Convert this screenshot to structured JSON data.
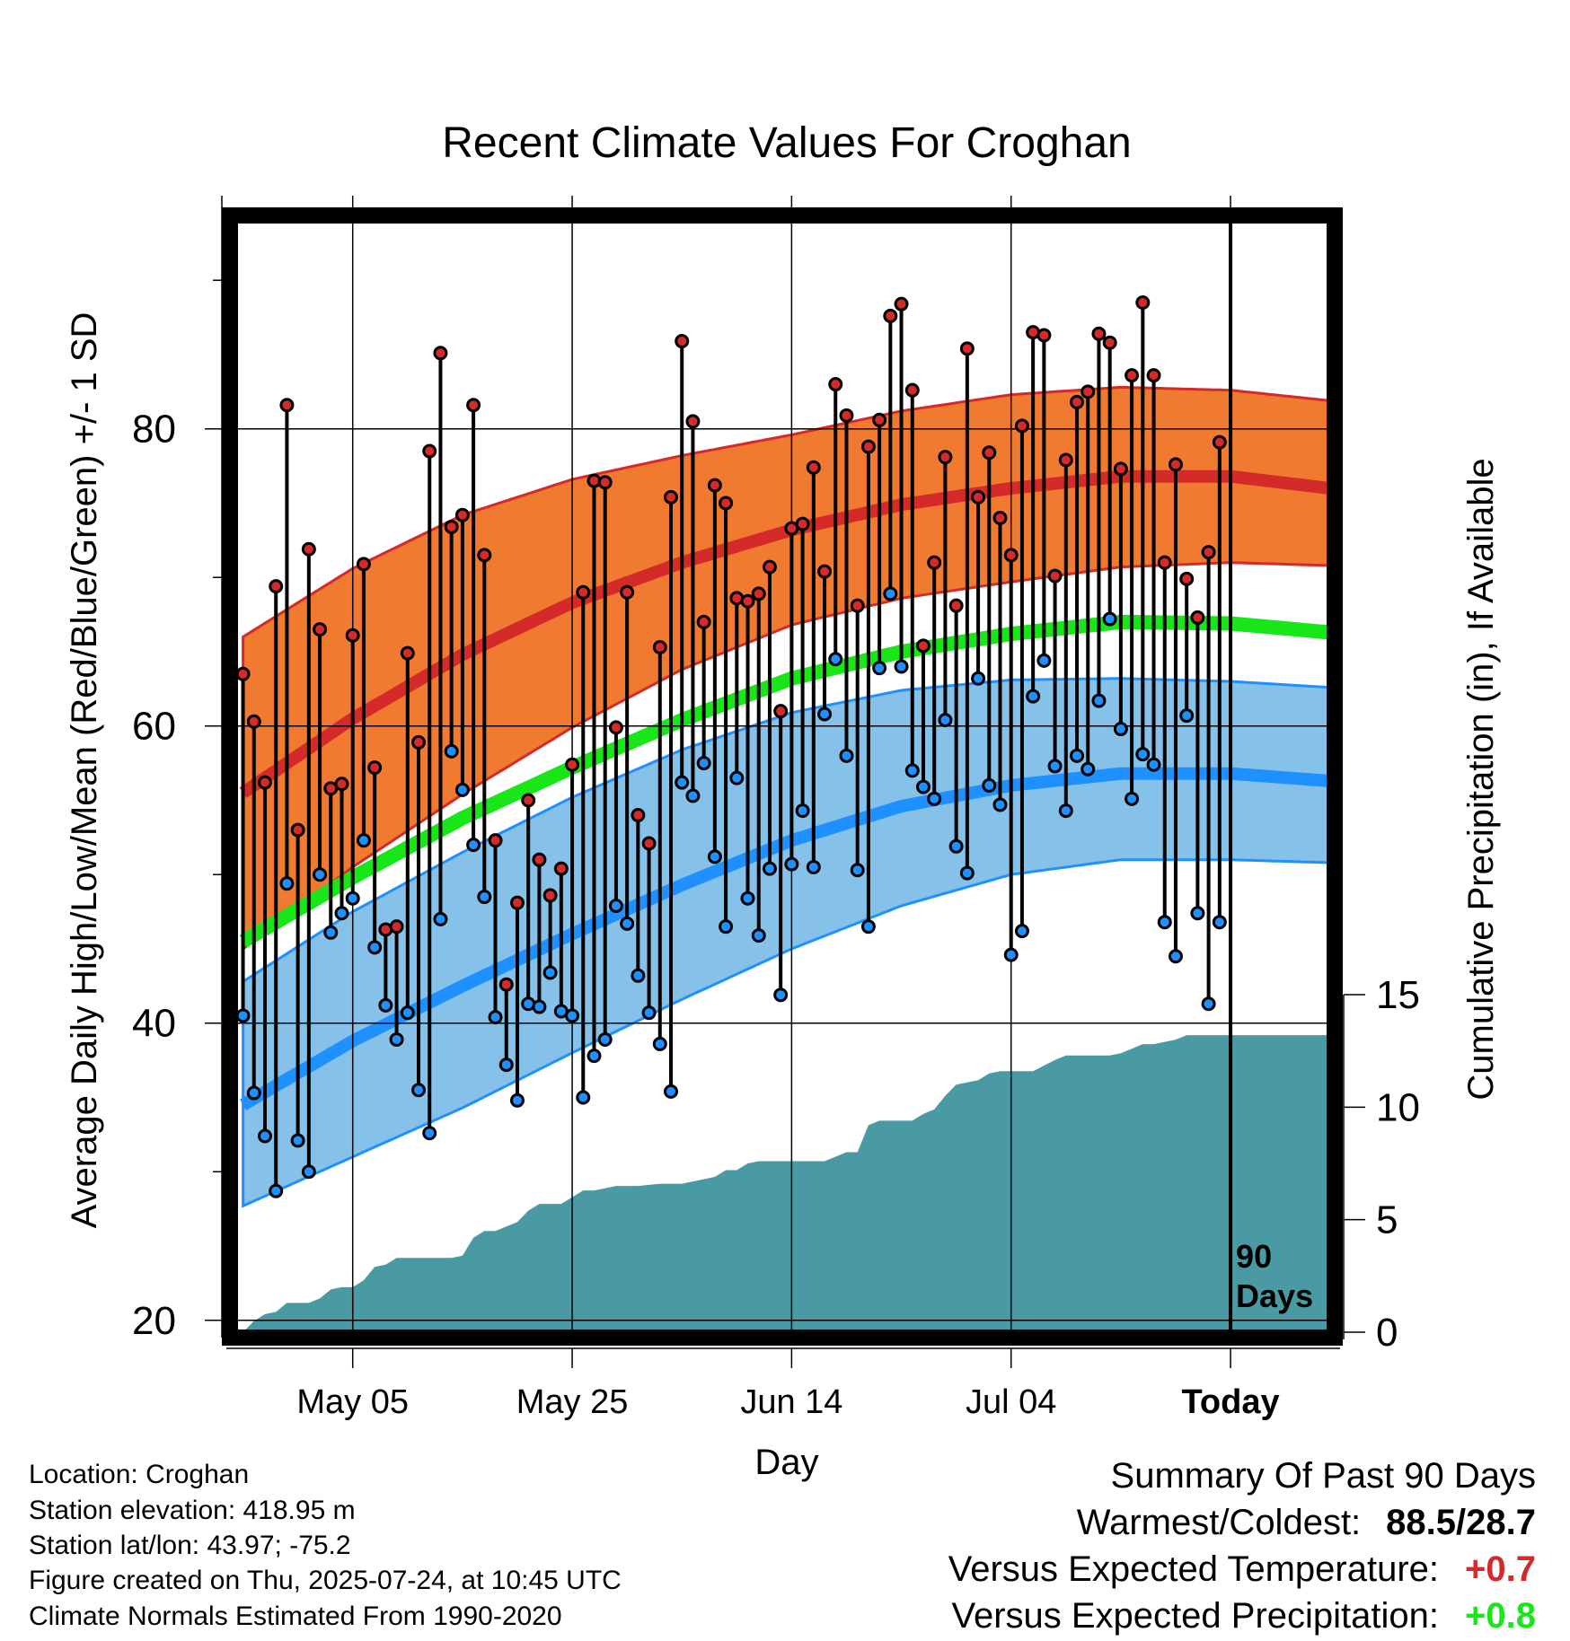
{
  "chart_data": {
    "type": "line",
    "title": "Recent Climate Values For Croghan",
    "xlabel": "Day",
    "ylabel": "Average Daily High/Low/Mean (Red/Blue/Green) +/- 1 SD",
    "y2label": "Cumulative Precipitation (in), If Available",
    "x_ticks": [
      "May 05",
      "May 25",
      "Jun 14",
      "Jul 04",
      "Today"
    ],
    "x_tick_day_index": [
      10,
      30,
      50,
      70,
      90
    ],
    "xlim_day_index": [
      -0.7,
      99
    ],
    "ylim": [
      19.2,
      94
    ],
    "y_ticks": [
      20,
      40,
      60,
      80
    ],
    "y2_ticks": [
      0,
      5,
      10,
      15
    ],
    "y2lim": [
      0,
      15
    ],
    "grid": true,
    "today_marker_label": "90\nDays",
    "colors": {
      "high_band": "#f07a30",
      "high_mean": "#d42a2a",
      "low_band": "#85c1e9",
      "low_mean": "#1e90ff",
      "mean_line": "#19e619",
      "precip": "#4a9aa3",
      "high_dot": "#d42a2a",
      "low_dot": "#1e90ff"
    },
    "normals": {
      "day_index": [
        0,
        10,
        20,
        30,
        40,
        50,
        60,
        70,
        80,
        90,
        99
      ],
      "high_mean": [
        55.5,
        60.5,
        64.8,
        68.3,
        71.0,
        73.2,
        74.9,
        76.0,
        76.8,
        76.8,
        76.0
      ],
      "high_sd_upper": [
        66.0,
        70.6,
        74.2,
        76.6,
        78.2,
        79.6,
        81.2,
        82.3,
        82.8,
        82.6,
        81.9
      ],
      "high_sd_lower": [
        45.0,
        50.5,
        55.4,
        59.9,
        63.8,
        66.8,
        68.6,
        69.7,
        70.7,
        71.0,
        70.8
      ],
      "low_mean": [
        34.5,
        38.8,
        42.5,
        46.0,
        49.3,
        52.3,
        54.6,
        56.0,
        56.8,
        56.8,
        56.3
      ],
      "low_sd_upper": [
        42.8,
        47.5,
        51.5,
        55.2,
        58.4,
        60.9,
        62.4,
        63.1,
        63.2,
        63.0,
        62.6
      ],
      "low_sd_lower": [
        27.7,
        31.0,
        34.3,
        38.0,
        41.6,
        45.0,
        47.9,
        50.0,
        51.0,
        51.0,
        50.8
      ],
      "mean": [
        45.5,
        49.8,
        53.8,
        57.2,
        60.4,
        63.2,
        65.0,
        66.2,
        67.0,
        66.9,
        66.3
      ]
    },
    "daily_high": [
      63.5,
      60.3,
      56.2,
      69.4,
      81.6,
      53.0,
      71.9,
      66.5,
      55.8,
      56.1,
      66.1,
      70.9,
      57.2,
      46.3,
      46.5,
      64.9,
      58.9,
      78.5,
      85.1,
      73.4,
      74.2,
      81.6,
      71.5,
      52.3,
      42.6,
      48.1,
      55.0,
      51.0,
      48.6,
      50.4,
      57.4,
      69.0,
      76.5,
      76.4,
      59.9,
      69.0,
      54.0,
      52.1,
      65.3,
      75.4,
      85.9,
      80.5,
      67.0,
      76.2,
      75.0,
      68.6,
      68.4,
      68.9,
      70.7,
      61.0,
      73.3,
      73.6,
      77.4,
      70.4,
      83.0,
      80.9,
      68.1,
      78.8,
      80.6,
      87.6,
      88.4,
      82.6,
      65.4,
      71.0,
      78.1,
      68.1,
      85.4,
      75.4,
      78.4,
      74.0,
      71.5,
      80.2,
      86.5,
      86.3,
      70.1,
      77.9,
      81.8,
      82.5,
      86.4,
      85.8,
      77.3,
      83.6,
      88.5,
      83.6,
      71.0,
      77.6,
      69.9,
      67.3,
      71.7,
      79.1
    ],
    "daily_low": [
      40.5,
      35.3,
      32.4,
      28.7,
      49.4,
      32.1,
      30.0,
      50.0,
      46.1,
      47.4,
      48.4,
      52.3,
      45.1,
      41.2,
      38.9,
      40.7,
      35.5,
      32.6,
      47.0,
      58.3,
      55.7,
      52.0,
      48.5,
      40.4,
      37.2,
      34.8,
      41.3,
      41.1,
      43.4,
      40.8,
      40.5,
      35.0,
      37.8,
      38.9,
      47.9,
      46.7,
      43.2,
      40.7,
      38.6,
      35.4,
      56.2,
      55.3,
      57.5,
      51.2,
      46.5,
      56.5,
      48.4,
      45.9,
      50.4,
      41.9,
      50.7,
      54.3,
      50.5,
      60.8,
      64.5,
      58.0,
      50.3,
      46.5,
      63.9,
      68.9,
      64.0,
      57.0,
      55.9,
      55.1,
      60.4,
      51.9,
      50.1,
      63.2,
      56.0,
      54.7,
      44.6,
      46.2,
      62.0,
      64.4,
      57.3,
      54.3,
      58.0,
      57.1,
      61.7,
      67.2,
      59.8,
      55.1,
      58.1,
      57.4,
      46.8,
      44.5,
      60.7,
      47.4,
      41.3,
      46.8
    ],
    "precip_cumulative": {
      "day_index": [
        0,
        1,
        2,
        3,
        4,
        6,
        7,
        8,
        9,
        10,
        11,
        12,
        13,
        14,
        16,
        17,
        19,
        20,
        21,
        22,
        23,
        24,
        25,
        26,
        27,
        28,
        29,
        30,
        31,
        32,
        34,
        35,
        36,
        38,
        40,
        41,
        43,
        44,
        45,
        46,
        47,
        48,
        49,
        51,
        53,
        54,
        55,
        56,
        57,
        58,
        59,
        61,
        62,
        63,
        64,
        65,
        66,
        67,
        68,
        69,
        71,
        72,
        74,
        75,
        76,
        78,
        79,
        80,
        81,
        82,
        83,
        84,
        85,
        86,
        88,
        90,
        99
      ],
      "value": [
        0.0,
        0.5,
        0.8,
        0.9,
        1.3,
        1.3,
        1.5,
        1.9,
        2.0,
        2.0,
        2.3,
        2.9,
        3.0,
        3.3,
        3.3,
        3.3,
        3.3,
        3.4,
        4.2,
        4.5,
        4.5,
        4.7,
        4.9,
        5.4,
        5.7,
        5.7,
        5.7,
        6.0,
        6.3,
        6.3,
        6.5,
        6.5,
        6.5,
        6.6,
        6.6,
        6.7,
        6.9,
        7.2,
        7.2,
        7.5,
        7.6,
        7.6,
        7.6,
        7.6,
        7.6,
        7.8,
        8.0,
        8.0,
        9.2,
        9.4,
        9.4,
        9.4,
        9.7,
        9.9,
        10.5,
        11.0,
        11.1,
        11.2,
        11.5,
        11.6,
        11.6,
        11.6,
        12.1,
        12.3,
        12.3,
        12.3,
        12.3,
        12.4,
        12.6,
        12.8,
        12.8,
        12.9,
        13.0,
        13.2,
        13.2,
        13.2,
        13.2
      ]
    }
  },
  "station_info": {
    "location": "Location: Croghan",
    "elevation": "Station elevation: 418.95 m",
    "latlon": "Station lat/lon: 43.97; -75.2",
    "created": "Figure created on Thu, 2025-07-24, at 10:45 UTC",
    "normals": "Climate Normals Estimated From 1990-2020"
  },
  "summary": {
    "title": "Summary Of Past 90 Days",
    "warmest_coldest_label": "Warmest/Coldest:",
    "warmest_coldest_value": "88.5/28.7",
    "temp_label": "Versus Expected Temperature:",
    "temp_value": "+0.7",
    "temp_color": "#d42a2a",
    "precip_label": "Versus Expected Precipitation:",
    "precip_value": "+0.8",
    "precip_color": "#19e619"
  }
}
